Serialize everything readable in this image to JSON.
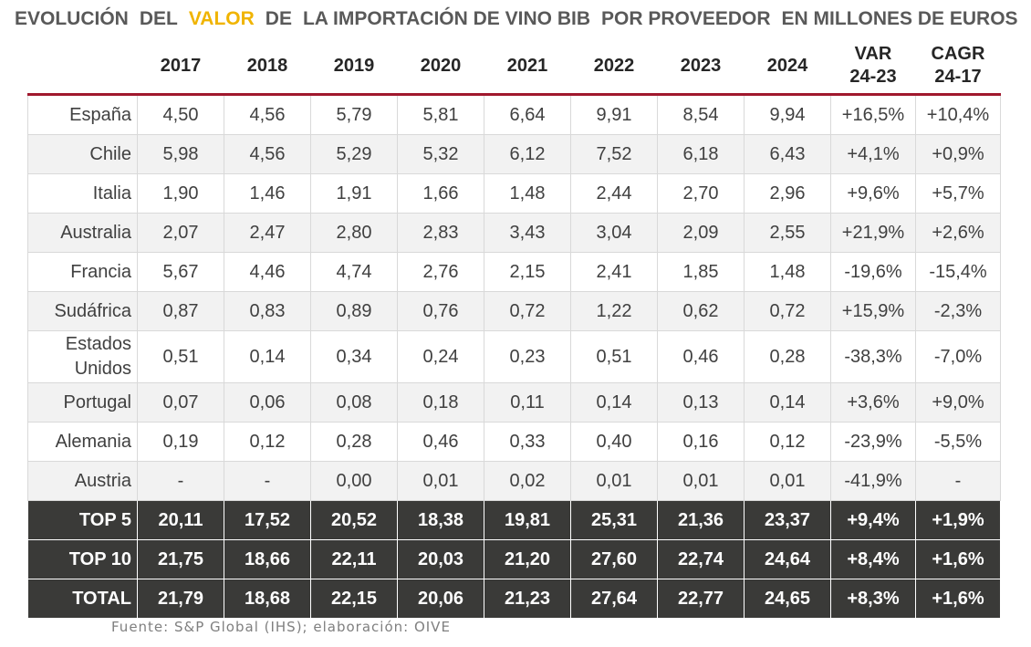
{
  "title": {
    "parts": [
      "EVOLUCIÓN",
      "DEL",
      "VALOR",
      "DE",
      "LA IMPORTACIÓN DE VINO BIB",
      "POR PROVEEDOR",
      "EN MILLONES DE EUROS"
    ],
    "highlight_color": "#f0b400"
  },
  "colors": {
    "header_rule": "#a0182d",
    "total_row_bg": "#3a3a38",
    "alt_row_bg": "#f2f2f2"
  },
  "chart_data": {
    "type": "table",
    "columns": [
      "",
      "2017",
      "2018",
      "2019",
      "2020",
      "2021",
      "2022",
      "2023",
      "2024",
      "VAR 24-23",
      "CAGR 24-17"
    ],
    "column_headers": [
      {
        "line1": "",
        "line2": ""
      },
      {
        "line1": "2017",
        "line2": ""
      },
      {
        "line1": "2018",
        "line2": ""
      },
      {
        "line1": "2019",
        "line2": ""
      },
      {
        "line1": "2020",
        "line2": ""
      },
      {
        "line1": "2021",
        "line2": ""
      },
      {
        "line1": "2022",
        "line2": ""
      },
      {
        "line1": "2023",
        "line2": ""
      },
      {
        "line1": "2024",
        "line2": ""
      },
      {
        "line1": "VAR",
        "line2": "24-23"
      },
      {
        "line1": "CAGR",
        "line2": "24-17"
      }
    ],
    "rows": [
      {
        "name": "España",
        "values": [
          "4,50",
          "4,56",
          "5,79",
          "5,81",
          "6,64",
          "9,91",
          "8,54",
          "9,94",
          "+16,5%",
          "+10,4%"
        ]
      },
      {
        "name": "Chile",
        "values": [
          "5,98",
          "4,56",
          "5,29",
          "5,32",
          "6,12",
          "7,52",
          "6,18",
          "6,43",
          "+4,1%",
          "+0,9%"
        ]
      },
      {
        "name": "Italia",
        "values": [
          "1,90",
          "1,46",
          "1,91",
          "1,66",
          "1,48",
          "2,44",
          "2,70",
          "2,96",
          "+9,6%",
          "+5,7%"
        ]
      },
      {
        "name": "Australia",
        "values": [
          "2,07",
          "2,47",
          "2,80",
          "2,83",
          "3,43",
          "3,04",
          "2,09",
          "2,55",
          "+21,9%",
          "+2,6%"
        ]
      },
      {
        "name": "Francia",
        "values": [
          "5,67",
          "4,46",
          "4,74",
          "2,76",
          "2,15",
          "2,41",
          "1,85",
          "1,48",
          "-19,6%",
          "-15,4%"
        ]
      },
      {
        "name": "Sudáfrica",
        "values": [
          "0,87",
          "0,83",
          "0,89",
          "0,76",
          "0,72",
          "1,22",
          "0,62",
          "0,72",
          "+15,9%",
          "-2,3%"
        ]
      },
      {
        "name": "Estados Unidos",
        "values": [
          "0,51",
          "0,14",
          "0,34",
          "0,24",
          "0,23",
          "0,51",
          "0,46",
          "0,28",
          "-38,3%",
          "-7,0%"
        ]
      },
      {
        "name": "Portugal",
        "values": [
          "0,07",
          "0,06",
          "0,08",
          "0,18",
          "0,11",
          "0,14",
          "0,13",
          "0,14",
          "+3,6%",
          "+9,0%"
        ]
      },
      {
        "name": "Alemania",
        "values": [
          "0,19",
          "0,12",
          "0,28",
          "0,46",
          "0,33",
          "0,40",
          "0,16",
          "0,12",
          "-23,9%",
          "-5,5%"
        ]
      },
      {
        "name": "Austria",
        "values": [
          "-",
          "-",
          "0,00",
          "0,01",
          "0,02",
          "0,01",
          "0,01",
          "0,01",
          "-41,9%",
          "-"
        ]
      }
    ],
    "totals": [
      {
        "name": "TOP 5",
        "values": [
          "20,11",
          "17,52",
          "20,52",
          "18,38",
          "19,81",
          "25,31",
          "21,36",
          "23,37",
          "+9,4%",
          "+1,9%"
        ]
      },
      {
        "name": "TOP 10",
        "values": [
          "21,75",
          "18,66",
          "22,11",
          "20,03",
          "21,20",
          "27,60",
          "22,74",
          "24,64",
          "+8,4%",
          "+1,6%"
        ]
      },
      {
        "name": "TOTAL",
        "values": [
          "21,79",
          "18,68",
          "22,15",
          "20,06",
          "21,23",
          "27,64",
          "22,77",
          "24,65",
          "+8,3%",
          "+1,6%"
        ]
      }
    ]
  },
  "source": "Fuente:  S&P Global  (IHS); elaboración:  OIVE"
}
